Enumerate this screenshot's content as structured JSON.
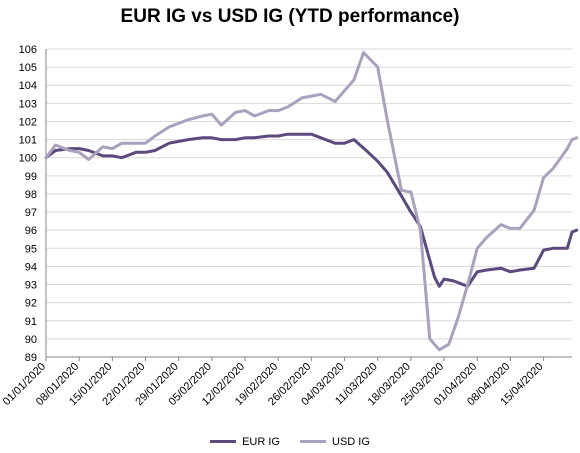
{
  "chart_data": {
    "type": "line",
    "title": "EUR IG vs USD IG (YTD performance)",
    "xlabel": "",
    "ylabel": "",
    "ylim": [
      89,
      106
    ],
    "yticks": [
      89,
      90,
      91,
      92,
      93,
      94,
      95,
      96,
      97,
      98,
      99,
      100,
      101,
      102,
      103,
      104,
      105,
      106
    ],
    "x_tick_labels": [
      "01/01/2020",
      "08/01/2020",
      "15/01/2020",
      "22/01/2020",
      "29/01/2020",
      "05/02/2020",
      "12/02/2020",
      "19/02/2020",
      "26/02/2020",
      "04/03/2020",
      "11/03/2020",
      "18/03/2020",
      "25/03/2020",
      "01/04/2020",
      "08/04/2020",
      "15/04/2020"
    ],
    "x_range_days": [
      0,
      111
    ],
    "grid": true,
    "legend": "bottom",
    "series": [
      {
        "name": "EUR IG",
        "color": "#5c4a7e",
        "points": [
          [
            "01/01/2020",
            100.0
          ],
          [
            "03/01/2020",
            100.4
          ],
          [
            "06/01/2020",
            100.5
          ],
          [
            "08/01/2020",
            100.5
          ],
          [
            "10/01/2020",
            100.4
          ],
          [
            "13/01/2020",
            100.1
          ],
          [
            "15/01/2020",
            100.1
          ],
          [
            "17/01/2020",
            100.0
          ],
          [
            "20/01/2020",
            100.3
          ],
          [
            "22/01/2020",
            100.3
          ],
          [
            "24/01/2020",
            100.4
          ],
          [
            "27/01/2020",
            100.8
          ],
          [
            "29/01/2020",
            100.9
          ],
          [
            "31/01/2020",
            101.0
          ],
          [
            "03/02/2020",
            101.1
          ],
          [
            "05/02/2020",
            101.1
          ],
          [
            "07/02/2020",
            101.0
          ],
          [
            "10/02/2020",
            101.0
          ],
          [
            "12/02/2020",
            101.1
          ],
          [
            "14/02/2020",
            101.1
          ],
          [
            "17/02/2020",
            101.2
          ],
          [
            "19/02/2020",
            101.2
          ],
          [
            "21/02/2020",
            101.3
          ],
          [
            "24/02/2020",
            101.3
          ],
          [
            "26/02/2020",
            101.3
          ],
          [
            "28/02/2020",
            101.1
          ],
          [
            "02/03/2020",
            100.8
          ],
          [
            "04/03/2020",
            100.8
          ],
          [
            "06/03/2020",
            101.0
          ],
          [
            "09/03/2020",
            100.3
          ],
          [
            "11/03/2020",
            99.8
          ],
          [
            "13/03/2020",
            99.2
          ],
          [
            "16/03/2020",
            97.9
          ],
          [
            "18/03/2020",
            97.0
          ],
          [
            "20/03/2020",
            96.2
          ],
          [
            "23/03/2020",
            93.4
          ],
          [
            "24/03/2020",
            92.9
          ],
          [
            "25/03/2020",
            93.3
          ],
          [
            "27/03/2020",
            93.2
          ],
          [
            "30/03/2020",
            92.9
          ],
          [
            "01/04/2020",
            93.7
          ],
          [
            "03/04/2020",
            93.8
          ],
          [
            "06/04/2020",
            93.9
          ],
          [
            "08/04/2020",
            93.7
          ],
          [
            "10/04/2020",
            93.8
          ],
          [
            "13/04/2020",
            93.9
          ],
          [
            "15/04/2020",
            94.9
          ],
          [
            "17/04/2020",
            95.0
          ],
          [
            "20/04/2020",
            95.0
          ],
          [
            "21/04/2020",
            95.9
          ],
          [
            "22/04/2020",
            96.0
          ]
        ]
      },
      {
        "name": "USD IG",
        "color": "#a9a1bd",
        "points": [
          [
            "01/01/2020",
            100.0
          ],
          [
            "03/01/2020",
            100.7
          ],
          [
            "06/01/2020",
            100.4
          ],
          [
            "08/01/2020",
            100.3
          ],
          [
            "10/01/2020",
            99.9
          ],
          [
            "13/01/2020",
            100.6
          ],
          [
            "15/01/2020",
            100.5
          ],
          [
            "17/01/2020",
            100.8
          ],
          [
            "20/01/2020",
            100.8
          ],
          [
            "22/01/2020",
            100.8
          ],
          [
            "24/01/2020",
            101.2
          ],
          [
            "27/01/2020",
            101.7
          ],
          [
            "29/01/2020",
            101.9
          ],
          [
            "31/01/2020",
            102.1
          ],
          [
            "03/02/2020",
            102.3
          ],
          [
            "05/02/2020",
            102.4
          ],
          [
            "07/02/2020",
            101.8
          ],
          [
            "10/02/2020",
            102.5
          ],
          [
            "12/02/2020",
            102.6
          ],
          [
            "14/02/2020",
            102.3
          ],
          [
            "17/02/2020",
            102.6
          ],
          [
            "19/02/2020",
            102.6
          ],
          [
            "21/02/2020",
            102.8
          ],
          [
            "24/02/2020",
            103.3
          ],
          [
            "26/02/2020",
            103.4
          ],
          [
            "28/02/2020",
            103.5
          ],
          [
            "02/03/2020",
            103.1
          ],
          [
            "04/03/2020",
            103.7
          ],
          [
            "06/03/2020",
            104.3
          ],
          [
            "08/03/2020",
            105.8
          ],
          [
            "11/03/2020",
            105.0
          ],
          [
            "13/03/2020",
            102.1
          ],
          [
            "16/03/2020",
            98.2
          ],
          [
            "18/03/2020",
            98.1
          ],
          [
            "20/03/2020",
            96.0
          ],
          [
            "22/03/2020",
            90.0
          ],
          [
            "24/03/2020",
            89.4
          ],
          [
            "26/03/2020",
            89.7
          ],
          [
            "28/03/2020",
            91.2
          ],
          [
            "30/03/2020",
            93.0
          ],
          [
            "01/04/2020",
            95.0
          ],
          [
            "03/04/2020",
            95.6
          ],
          [
            "06/04/2020",
            96.3
          ],
          [
            "08/04/2020",
            96.1
          ],
          [
            "10/04/2020",
            96.1
          ],
          [
            "13/04/2020",
            97.1
          ],
          [
            "15/04/2020",
            98.9
          ],
          [
            "17/04/2020",
            99.4
          ],
          [
            "20/04/2020",
            100.5
          ],
          [
            "21/04/2020",
            101.0
          ],
          [
            "22/04/2020",
            101.1
          ]
        ]
      }
    ]
  }
}
